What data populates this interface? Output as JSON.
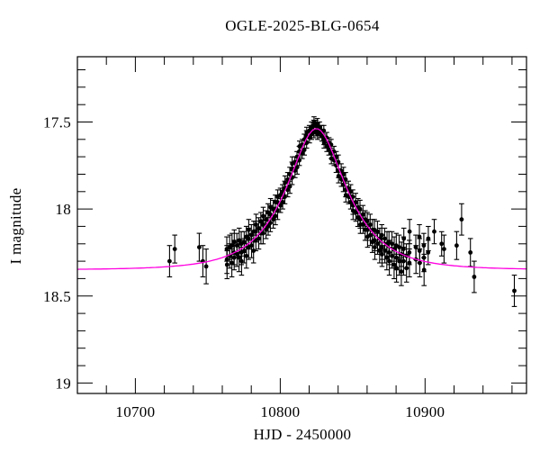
{
  "figure": {
    "background": "#ffffff"
  },
  "chart_data": {
    "type": "scatter",
    "title": "OGLE-2025-BLG-0654",
    "xlabel": "HJD - 2450000",
    "ylabel": "I magnitude",
    "xlim": [
      10660,
      10970
    ],
    "ylim_mag": [
      19.06,
      17.125
    ],
    "y_axis_inverted": true,
    "grid": false,
    "legend": "none",
    "x_major_ticks": [
      10700,
      10800,
      10900
    ],
    "x_minor_step": 20,
    "y_major_ticks": [
      17.5,
      18,
      18.5,
      19
    ],
    "y_minor_step": 0.1,
    "colors": {
      "data": "#000000",
      "model": "#ff00e0",
      "frame": "#000000"
    },
    "marker": {
      "shape": "filled-circle",
      "radius_px": 2.4,
      "error_bar_caps": true
    },
    "model": {
      "kind": "paczynski-point-lens-magnification",
      "t0": 10825,
      "tE": 35,
      "u0": 0.52,
      "baseline_mag": 18.35,
      "peak_mag": 17.54
    },
    "points_format": [
      "hjd_minus_2450000",
      "i_mag",
      "mag_error"
    ],
    "points": [
      [
        10723.6,
        18.3,
        0.09
      ],
      [
        10727.2,
        18.23,
        0.08
      ],
      [
        10744.1,
        18.22,
        0.08
      ],
      [
        10746.6,
        18.3,
        0.09
      ],
      [
        10748.9,
        18.33,
        0.1
      ],
      [
        10763.1,
        18.23,
        0.07
      ],
      [
        10763.2,
        18.29,
        0.08
      ],
      [
        10763.3,
        18.32,
        0.08
      ],
      [
        10765.1,
        18.22,
        0.07
      ],
      [
        10765.2,
        18.27,
        0.07
      ],
      [
        10766.6,
        18.31,
        0.08
      ],
      [
        10766.7,
        18.21,
        0.07
      ],
      [
        10768.1,
        18.25,
        0.07
      ],
      [
        10768.2,
        18.28,
        0.07
      ],
      [
        10768.3,
        18.19,
        0.07
      ],
      [
        10770.1,
        18.21,
        0.07
      ],
      [
        10770.2,
        18.26,
        0.07
      ],
      [
        10771.6,
        18.28,
        0.08
      ],
      [
        10771.7,
        18.18,
        0.07
      ],
      [
        10773.1,
        18.2,
        0.07
      ],
      [
        10773.2,
        18.25,
        0.07
      ],
      [
        10773.3,
        18.3,
        0.08
      ],
      [
        10775.1,
        18.19,
        0.06
      ],
      [
        10775.2,
        18.24,
        0.07
      ],
      [
        10776.6,
        18.16,
        0.06
      ],
      [
        10776.7,
        18.27,
        0.07
      ],
      [
        10778.1,
        18.17,
        0.06
      ],
      [
        10778.2,
        18.22,
        0.07
      ],
      [
        10778.3,
        18.12,
        0.06
      ],
      [
        10780.1,
        18.15,
        0.06
      ],
      [
        10780.2,
        18.21,
        0.07
      ],
      [
        10781.6,
        18.24,
        0.07
      ],
      [
        10781.7,
        18.13,
        0.06
      ],
      [
        10783.1,
        18.13,
        0.06
      ],
      [
        10783.2,
        18.18,
        0.06
      ],
      [
        10783.3,
        18.09,
        0.06
      ],
      [
        10785.1,
        18.11,
        0.06
      ],
      [
        10785.2,
        18.17,
        0.06
      ],
      [
        10786.6,
        18.07,
        0.05
      ],
      [
        10786.7,
        18.14,
        0.06
      ],
      [
        10788.1,
        18.09,
        0.05
      ],
      [
        10788.2,
        18.14,
        0.06
      ],
      [
        10788.3,
        18.04,
        0.05
      ],
      [
        10790.1,
        18.06,
        0.05
      ],
      [
        10790.2,
        18.12,
        0.05
      ],
      [
        10791.6,
        18.02,
        0.05
      ],
      [
        10791.7,
        18.1,
        0.05
      ],
      [
        10793.1,
        18.03,
        0.05
      ],
      [
        10793.2,
        18.08,
        0.05
      ],
      [
        10793.3,
        17.99,
        0.05
      ],
      [
        10795.1,
        18.0,
        0.05
      ],
      [
        10795.2,
        18.06,
        0.05
      ],
      [
        10796.6,
        17.96,
        0.04
      ],
      [
        10796.7,
        18.04,
        0.05
      ],
      [
        10798.1,
        17.96,
        0.04
      ],
      [
        10798.2,
        18.01,
        0.05
      ],
      [
        10798.3,
        17.93,
        0.04
      ],
      [
        10800.1,
        17.92,
        0.04
      ],
      [
        10800.2,
        17.98,
        0.04
      ],
      [
        10801.6,
        17.9,
        0.04
      ],
      [
        10801.7,
        17.96,
        0.04
      ],
      [
        10803.1,
        17.88,
        0.04
      ],
      [
        10803.2,
        17.93,
        0.04
      ],
      [
        10803.3,
        17.85,
        0.04
      ],
      [
        10805.1,
        17.83,
        0.04
      ],
      [
        10805.2,
        17.89,
        0.04
      ],
      [
        10806.6,
        17.8,
        0.04
      ],
      [
        10806.7,
        17.87,
        0.04
      ],
      [
        10808.1,
        17.77,
        0.04
      ],
      [
        10808.2,
        17.82,
        0.04
      ],
      [
        10808.3,
        17.74,
        0.04
      ],
      [
        10810.1,
        17.73,
        0.03
      ],
      [
        10810.2,
        17.78,
        0.04
      ],
      [
        10811.6,
        17.7,
        0.03
      ],
      [
        10811.7,
        17.76,
        0.04
      ],
      [
        10813.1,
        17.67,
        0.03
      ],
      [
        10813.2,
        17.72,
        0.03
      ],
      [
        10813.3,
        17.64,
        0.03
      ],
      [
        10815.1,
        17.63,
        0.03
      ],
      [
        10815.2,
        17.68,
        0.03
      ],
      [
        10816.6,
        17.6,
        0.03
      ],
      [
        10816.7,
        17.66,
        0.03
      ],
      [
        10818.1,
        17.58,
        0.03
      ],
      [
        10818.2,
        17.62,
        0.03
      ],
      [
        10818.3,
        17.56,
        0.03
      ],
      [
        10820.1,
        17.55,
        0.03
      ],
      [
        10820.2,
        17.59,
        0.03
      ],
      [
        10821.6,
        17.53,
        0.03
      ],
      [
        10821.7,
        17.57,
        0.03
      ],
      [
        10823.1,
        17.52,
        0.03
      ],
      [
        10823.2,
        17.56,
        0.03
      ],
      [
        10823.3,
        17.5,
        0.03
      ],
      [
        10824.6,
        17.52,
        0.03
      ],
      [
        10824.7,
        17.55,
        0.03
      ],
      [
        10825.6,
        17.51,
        0.03
      ],
      [
        10825.7,
        17.54,
        0.03
      ],
      [
        10825.8,
        17.57,
        0.03
      ],
      [
        10827.1,
        17.53,
        0.03
      ],
      [
        10827.2,
        17.56,
        0.03
      ],
      [
        10828.6,
        17.55,
        0.03
      ],
      [
        10828.7,
        17.58,
        0.03
      ],
      [
        10830.1,
        17.55,
        0.03
      ],
      [
        10830.2,
        17.6,
        0.03
      ],
      [
        10830.3,
        17.62,
        0.03
      ],
      [
        10832.1,
        17.59,
        0.03
      ],
      [
        10832.2,
        17.64,
        0.03
      ],
      [
        10833.6,
        17.66,
        0.03
      ],
      [
        10833.7,
        17.62,
        0.03
      ],
      [
        10835.1,
        17.63,
        0.03
      ],
      [
        10835.2,
        17.68,
        0.03
      ],
      [
        10835.3,
        17.71,
        0.03
      ],
      [
        10837.1,
        17.67,
        0.03
      ],
      [
        10837.2,
        17.72,
        0.03
      ],
      [
        10838.6,
        17.75,
        0.04
      ],
      [
        10838.7,
        17.7,
        0.03
      ],
      [
        10840.1,
        17.73,
        0.04
      ],
      [
        10840.2,
        17.78,
        0.04
      ],
      [
        10840.3,
        17.81,
        0.04
      ],
      [
        10842.1,
        17.78,
        0.04
      ],
      [
        10842.2,
        17.83,
        0.04
      ],
      [
        10843.6,
        17.86,
        0.04
      ],
      [
        10843.7,
        17.8,
        0.04
      ],
      [
        10845.1,
        17.83,
        0.04
      ],
      [
        10845.2,
        17.89,
        0.04
      ],
      [
        10845.3,
        17.92,
        0.04
      ],
      [
        10847.1,
        17.88,
        0.04
      ],
      [
        10847.2,
        17.93,
        0.04
      ],
      [
        10848.6,
        17.96,
        0.04
      ],
      [
        10848.7,
        17.9,
        0.04
      ],
      [
        10850.1,
        17.93,
        0.04
      ],
      [
        10850.2,
        17.98,
        0.05
      ],
      [
        10850.3,
        18.01,
        0.05
      ],
      [
        10852.1,
        17.96,
        0.05
      ],
      [
        10852.2,
        18.02,
        0.05
      ],
      [
        10853.6,
        18.05,
        0.05
      ],
      [
        10853.7,
        17.99,
        0.05
      ],
      [
        10855.1,
        18.0,
        0.05
      ],
      [
        10855.2,
        18.06,
        0.05
      ],
      [
        10855.3,
        18.09,
        0.05
      ],
      [
        10857.1,
        18.03,
        0.05
      ],
      [
        10857.2,
        18.09,
        0.05
      ],
      [
        10858.6,
        18.12,
        0.06
      ],
      [
        10858.7,
        18.06,
        0.05
      ],
      [
        10860.1,
        18.07,
        0.05
      ],
      [
        10860.2,
        18.12,
        0.06
      ],
      [
        10860.3,
        18.16,
        0.06
      ],
      [
        10862.1,
        18.09,
        0.06
      ],
      [
        10862.2,
        18.15,
        0.06
      ],
      [
        10863.6,
        18.19,
        0.06
      ],
      [
        10863.7,
        18.12,
        0.06
      ],
      [
        10865.1,
        18.12,
        0.06
      ],
      [
        10865.2,
        18.18,
        0.06
      ],
      [
        10865.3,
        18.22,
        0.07
      ],
      [
        10867.1,
        18.13,
        0.06
      ],
      [
        10867.2,
        18.2,
        0.06
      ],
      [
        10868.6,
        18.24,
        0.07
      ],
      [
        10868.7,
        18.17,
        0.06
      ],
      [
        10870.1,
        18.15,
        0.06
      ],
      [
        10870.2,
        18.22,
        0.07
      ],
      [
        10870.3,
        18.26,
        0.07
      ],
      [
        10872.1,
        18.17,
        0.06
      ],
      [
        10872.2,
        18.24,
        0.07
      ],
      [
        10873.6,
        18.28,
        0.07
      ],
      [
        10873.7,
        18.2,
        0.07
      ],
      [
        10875.1,
        18.19,
        0.06
      ],
      [
        10875.2,
        18.25,
        0.07
      ],
      [
        10875.3,
        18.3,
        0.08
      ],
      [
        10877.1,
        18.2,
        0.07
      ],
      [
        10877.2,
        18.27,
        0.07
      ],
      [
        10878.6,
        18.32,
        0.08
      ],
      [
        10878.7,
        18.23,
        0.07
      ],
      [
        10880.1,
        18.21,
        0.07
      ],
      [
        10880.2,
        18.28,
        0.07
      ],
      [
        10880.3,
        18.34,
        0.08
      ],
      [
        10882.1,
        18.22,
        0.07
      ],
      [
        10882.2,
        18.3,
        0.08
      ],
      [
        10883.6,
        18.36,
        0.08
      ],
      [
        10883.7,
        18.26,
        0.07
      ],
      [
        10885.1,
        18.23,
        0.07
      ],
      [
        10885.2,
        18.3,
        0.08
      ],
      [
        10885.3,
        18.17,
        0.06
      ],
      [
        10887.1,
        18.27,
        0.07
      ],
      [
        10887.2,
        18.34,
        0.08
      ],
      [
        10889.1,
        18.25,
        0.07
      ],
      [
        10889.2,
        18.31,
        0.08
      ],
      [
        10889.3,
        18.13,
        0.07
      ],
      [
        10893.6,
        18.22,
        0.07
      ],
      [
        10893.7,
        18.29,
        0.08
      ],
      [
        10896.1,
        18.16,
        0.07
      ],
      [
        10896.2,
        18.24,
        0.07
      ],
      [
        10896.3,
        18.31,
        0.08
      ],
      [
        10899.1,
        18.21,
        0.07
      ],
      [
        10899.2,
        18.28,
        0.08
      ],
      [
        10899.3,
        18.35,
        0.09
      ],
      [
        10902.1,
        18.25,
        0.07
      ],
      [
        10902.2,
        18.17,
        0.07
      ],
      [
        10906.3,
        18.13,
        0.07
      ],
      [
        10911.4,
        18.2,
        0.07
      ],
      [
        10913.1,
        18.23,
        0.08
      ],
      [
        10921.8,
        18.21,
        0.08
      ],
      [
        10925.2,
        18.06,
        0.09
      ],
      [
        10931.3,
        18.25,
        0.08
      ],
      [
        10933.9,
        18.39,
        0.09
      ],
      [
        10961.6,
        18.47,
        0.09
      ]
    ]
  }
}
